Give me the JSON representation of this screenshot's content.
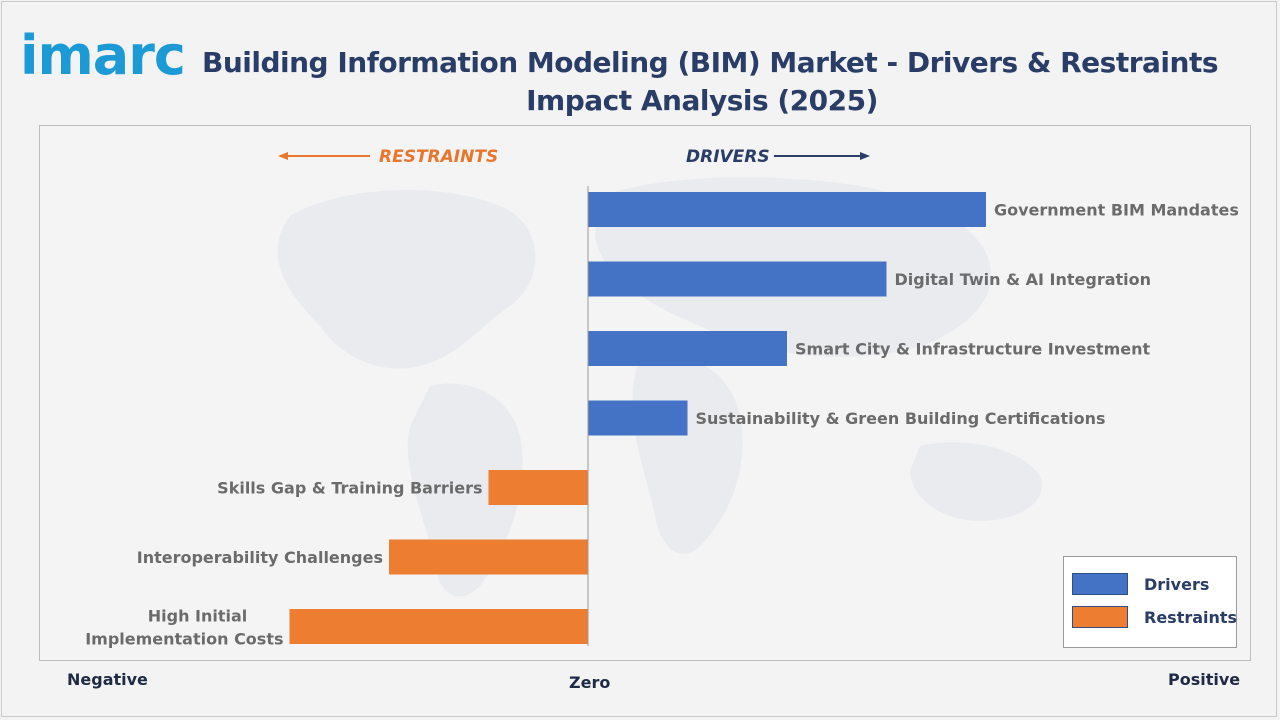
{
  "logo": {
    "text": "imarc",
    "color": "#1c9ad6"
  },
  "title": {
    "line1": "Building Information Modeling (BIM) Market - Drivers & Restraints",
    "line2": "Impact Analysis (2025)"
  },
  "direction_labels": {
    "restraints": "RESTRAINTS",
    "drivers": "DRIVERS"
  },
  "axis": {
    "negative": "Negative",
    "zero": "Zero",
    "positive": "Positive"
  },
  "legend": [
    {
      "label": "Drivers",
      "color": "#4472c4"
    },
    {
      "label": "Restraints",
      "color": "#ed7d31"
    }
  ],
  "colors": {
    "drivers": "#4472c4",
    "restraints": "#ed7d31",
    "restraints_text": "#e8762d",
    "drivers_text": "#2a3d66"
  },
  "chart_data": {
    "type": "bar",
    "orientation": "horizontal",
    "title": "Building Information Modeling (BIM) Market - Drivers & Restraints Impact Analysis (2025)",
    "xlim": [
      -3,
      4
    ],
    "categories": [
      "Government BIM Mandates",
      "Digital Twin & AI Integration",
      "Smart City & Infrastructure Investment",
      "Sustainability & Green Building Certifications",
      "Skills Gap & Training Barriers",
      "Interoperability Challenges",
      "High Initial Implementation Costs"
    ],
    "series": [
      {
        "name": "Drivers",
        "values": [
          4,
          3,
          2,
          1,
          0,
          0,
          0
        ]
      },
      {
        "name": "Restraints",
        "values": [
          0,
          0,
          0,
          0,
          -1,
          -2,
          -3
        ]
      }
    ],
    "legend_position": "bottom-right",
    "grid": false
  }
}
